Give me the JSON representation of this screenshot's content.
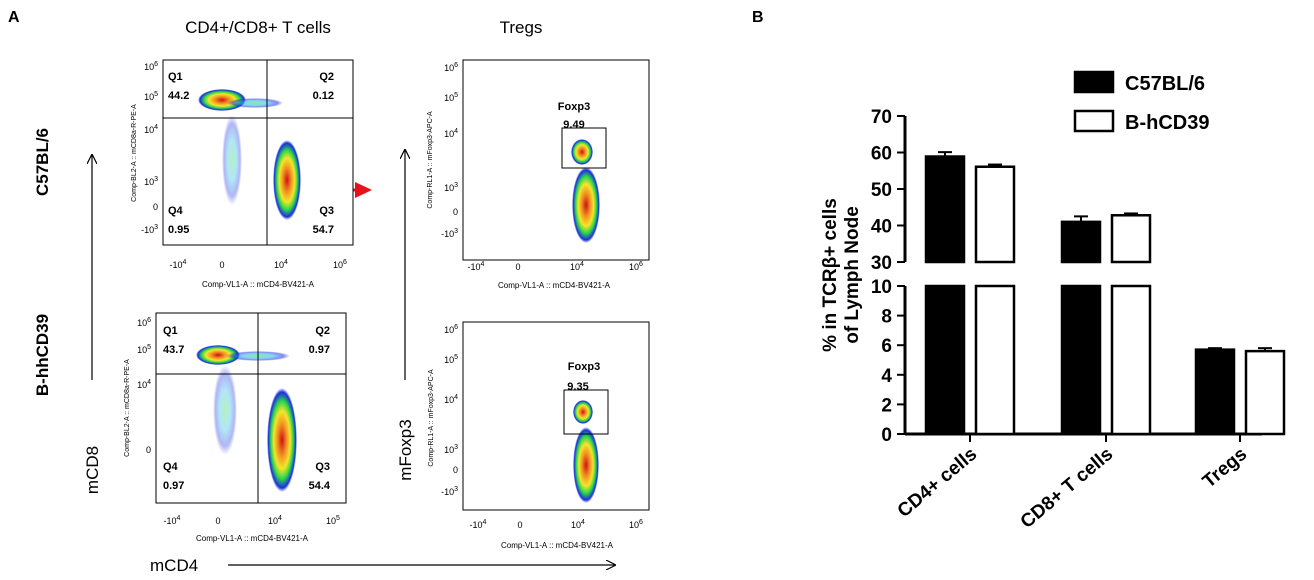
{
  "panelA": {
    "label": "A",
    "col_titles": [
      "CD4+/CD8+ T cells",
      "Tregs"
    ],
    "row_titles": [
      "C57BL/6",
      "B-hhCD39"
    ],
    "axis_label_y": "mCD8",
    "axis_label_y2": "mFoxp3",
    "axis_label_x": "mCD4",
    "cd48_plots": [
      {
        "ylabel": "Comp-BL2-A :: mCD8a-R-PE-A",
        "xlabel": "Comp-VL1-A :: mCD4-BV421-A",
        "y_ticks": [
          "10^6",
          "10^5",
          "10^4",
          "10^3",
          "0",
          "-10^3"
        ],
        "x_ticks": [
          "-10^4",
          "0",
          "10^4",
          "10^6"
        ],
        "quadrants": [
          {
            "name": "Q1",
            "value": "44.2"
          },
          {
            "name": "Q2",
            "value": "0.12"
          },
          {
            "name": "Q3",
            "value": "54.7"
          },
          {
            "name": "Q4",
            "value": "0.95"
          }
        ]
      },
      {
        "ylabel": "Comp-BL2-A :: mCD8a-R-PE-A",
        "xlabel": "Comp-VL1-A :: mCD4-BV421-A",
        "y_ticks": [
          "10^6",
          "10^5",
          "10^4",
          "0"
        ],
        "x_ticks": [
          "-10^4",
          "0",
          "10^4",
          "10^5"
        ],
        "quadrants": [
          {
            "name": "Q1",
            "value": "43.7"
          },
          {
            "name": "Q2",
            "value": "0.97"
          },
          {
            "name": "Q3",
            "value": "54.4"
          },
          {
            "name": "Q4",
            "value": "0.97"
          }
        ]
      }
    ],
    "treg_plots": [
      {
        "ylabel": "Comp-RL1-A :: mFoxp3-APC-A",
        "xlabel": "Comp-VL1-A :: mCD4-BV421-A",
        "y_ticks": [
          "10^6",
          "10^5",
          "10^4",
          "10^3",
          "0",
          "-10^3"
        ],
        "x_ticks": [
          "-10^4",
          "0",
          "10^4",
          "10^6"
        ],
        "gate_name": "Foxp3",
        "gate_value": "9.49"
      },
      {
        "ylabel": "Comp-RL1-A :: mFoxp3-APC-A",
        "xlabel": "Comp-VL1-A :: mCD4-BV421-A",
        "y_ticks": [
          "10^6",
          "10^5",
          "10^4",
          "10^3",
          "0",
          "-10^3"
        ],
        "x_ticks": [
          "-10^4",
          "0",
          "10^4",
          "10^6"
        ],
        "gate_name": "Foxp3",
        "gate_value": "9.35"
      }
    ]
  },
  "colors": {
    "axis": "#000000",
    "arrow_red": "#e8111b",
    "bar_fill_1": "#000000",
    "bar_fill_2": "#ffffff",
    "density_low": "#1b2ee0",
    "density_high": "#e8111b"
  },
  "chart_data": {
    "panel_label": "B",
    "type": "bar",
    "categories": [
      "CD4+ cells",
      "CD8+ T cells",
      "Tregs"
    ],
    "series": [
      {
        "name": "C57BL/6",
        "values": [
          58.9,
          41.0,
          5.7
        ],
        "errors": [
          1.2,
          1.5,
          0.1
        ]
      },
      {
        "name": "B-hCD39",
        "values": [
          56.1,
          42.8,
          5.6
        ],
        "errors": [
          0.6,
          0.5,
          0.2
        ]
      }
    ],
    "ylabel_lines": [
      "% in TCRβ+ cells",
      "of Lymph Node"
    ],
    "broken_axis": true,
    "segments": [
      {
        "range": [
          0,
          10
        ],
        "ticks": [
          "0",
          "2",
          "4",
          "6",
          "8",
          "10"
        ],
        "tick_values": [
          0,
          2,
          4,
          6,
          8,
          10
        ]
      },
      {
        "range": [
          30,
          70
        ],
        "ticks": [
          "30",
          "40",
          "50",
          "60",
          "70"
        ],
        "tick_values": [
          30,
          40,
          50,
          60,
          70
        ]
      }
    ],
    "legend_position": "top-right"
  }
}
